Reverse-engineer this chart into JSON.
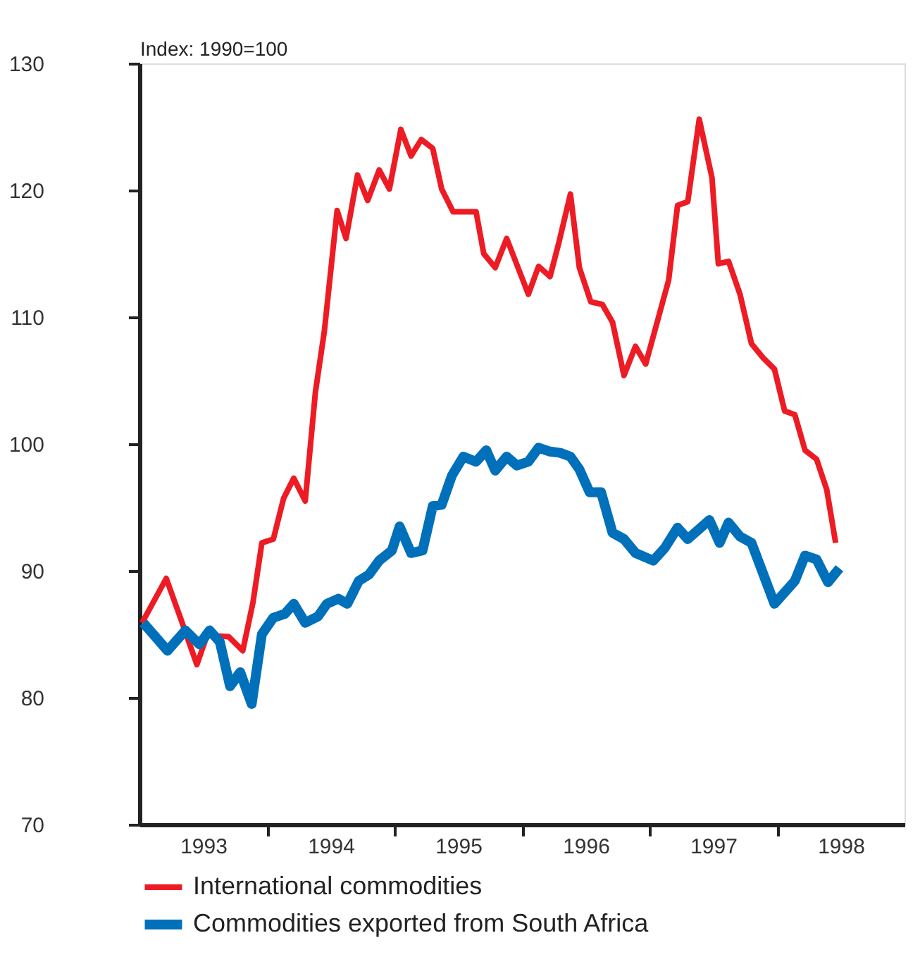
{
  "chart_data": {
    "type": "line",
    "ylabel": "Index: 1990=100",
    "xlim": [
      1993,
      1999
    ],
    "ylim": [
      70,
      130
    ],
    "yticks": [
      70,
      80,
      90,
      100,
      110,
      120,
      130
    ],
    "xticks": [
      {
        "value": 1993.5,
        "label": "1993"
      },
      {
        "value": 1994,
        "label": null
      },
      {
        "value": 1994.5,
        "label": "1994"
      },
      {
        "value": 1995,
        "label": null
      },
      {
        "value": 1995.5,
        "label": "1995"
      },
      {
        "value": 1996,
        "label": null
      },
      {
        "value": 1996.5,
        "label": "1996"
      },
      {
        "value": 1997,
        "label": null
      },
      {
        "value": 1997.5,
        "label": "1997"
      },
      {
        "value": 1998,
        "label": null
      },
      {
        "value": 1998.5,
        "label": "1998"
      }
    ],
    "grid": false,
    "legend": "bottom",
    "marker": "none",
    "line_style": "solid",
    "series": [
      {
        "name": "International commodities",
        "color": "#ed1c24",
        "x": [
          1993.02,
          1993.21,
          1993.31,
          1993.45,
          1993.53,
          1993.7,
          1993.81,
          1993.89,
          1993.96,
          1994.05,
          1994.13,
          1994.21,
          1994.3,
          1994.38,
          1994.45,
          1994.55,
          1994.62,
          1994.71,
          1994.79,
          1994.88,
          1994.96,
          1995.05,
          1995.13,
          1995.21,
          1995.3,
          1995.37,
          1995.46,
          1995.64,
          1995.7,
          1995.79,
          1995.88,
          1996.05,
          1996.13,
          1996.22,
          1996.29,
          1996.38,
          1996.45,
          1996.54,
          1996.63,
          1996.71,
          1996.8,
          1996.89,
          1996.97,
          1997.06,
          1997.15,
          1997.22,
          1997.3,
          1997.39,
          1997.49,
          1997.54,
          1997.62,
          1997.71,
          1997.8,
          1997.89,
          1997.98,
          1998.06,
          1998.14,
          1998.22,
          1998.31,
          1998.39,
          1998.46
        ],
        "values": [
          85.9,
          89.4,
          86.6,
          82.6,
          84.9,
          84.8,
          83.7,
          87.5,
          92.2,
          92.5,
          95.7,
          97.3,
          95.5,
          104.1,
          108.9,
          118.4,
          116.2,
          121.2,
          119.2,
          121.6,
          120.1,
          124.8,
          122.7,
          124.0,
          123.3,
          120.1,
          118.3,
          118.3,
          115.0,
          113.9,
          116.2,
          111.8,
          114.0,
          113.2,
          115.9,
          119.7,
          113.9,
          111.2,
          111.0,
          109.6,
          105.4,
          107.7,
          106.3,
          109.6,
          112.9,
          118.8,
          119.1,
          125.6,
          121.0,
          114.2,
          114.4,
          111.8,
          107.9,
          106.8,
          105.9,
          102.6,
          102.3,
          99.5,
          98.8,
          96.4,
          92.2
        ]
      },
      {
        "name": "Commodities exported from South Africa",
        "color": "#0070bb",
        "x": [
          1993.03,
          1993.22,
          1993.36,
          1993.47,
          1993.55,
          1993.63,
          1993.71,
          1993.79,
          1993.88,
          1993.96,
          1994.05,
          1994.14,
          1994.21,
          1994.3,
          1994.4,
          1994.47,
          1994.56,
          1994.63,
          1994.72,
          1994.8,
          1994.88,
          1994.98,
          1995.04,
          1995.13,
          1995.22,
          1995.3,
          1995.37,
          1995.45,
          1995.54,
          1995.64,
          1995.72,
          1995.79,
          1995.88,
          1995.96,
          1996.05,
          1996.13,
          1996.22,
          1996.3,
          1996.38,
          1996.45,
          1996.53,
          1996.62,
          1996.71,
          1996.8,
          1996.89,
          1997.03,
          1997.12,
          1997.22,
          1997.3,
          1997.47,
          1997.55,
          1997.62,
          1997.71,
          1997.8,
          1997.98,
          1998.14,
          1998.22,
          1998.31,
          1998.4,
          1998.49
        ],
        "values": [
          85.9,
          83.7,
          85.3,
          84.2,
          85.3,
          84.4,
          80.9,
          82.0,
          79.5,
          85.0,
          86.3,
          86.6,
          87.4,
          85.9,
          86.4,
          87.4,
          87.8,
          87.4,
          89.2,
          89.7,
          90.8,
          91.6,
          93.5,
          91.4,
          91.6,
          95.1,
          95.2,
          97.5,
          99.0,
          98.6,
          99.5,
          97.9,
          99.0,
          98.3,
          98.6,
          99.7,
          99.4,
          99.3,
          99.0,
          98.0,
          96.2,
          96.2,
          93.0,
          92.5,
          91.4,
          90.8,
          91.8,
          93.4,
          92.5,
          94.0,
          92.2,
          93.8,
          92.7,
          92.2,
          87.4,
          89.2,
          91.2,
          90.9,
          89.1,
          90.2
        ]
      }
    ]
  }
}
